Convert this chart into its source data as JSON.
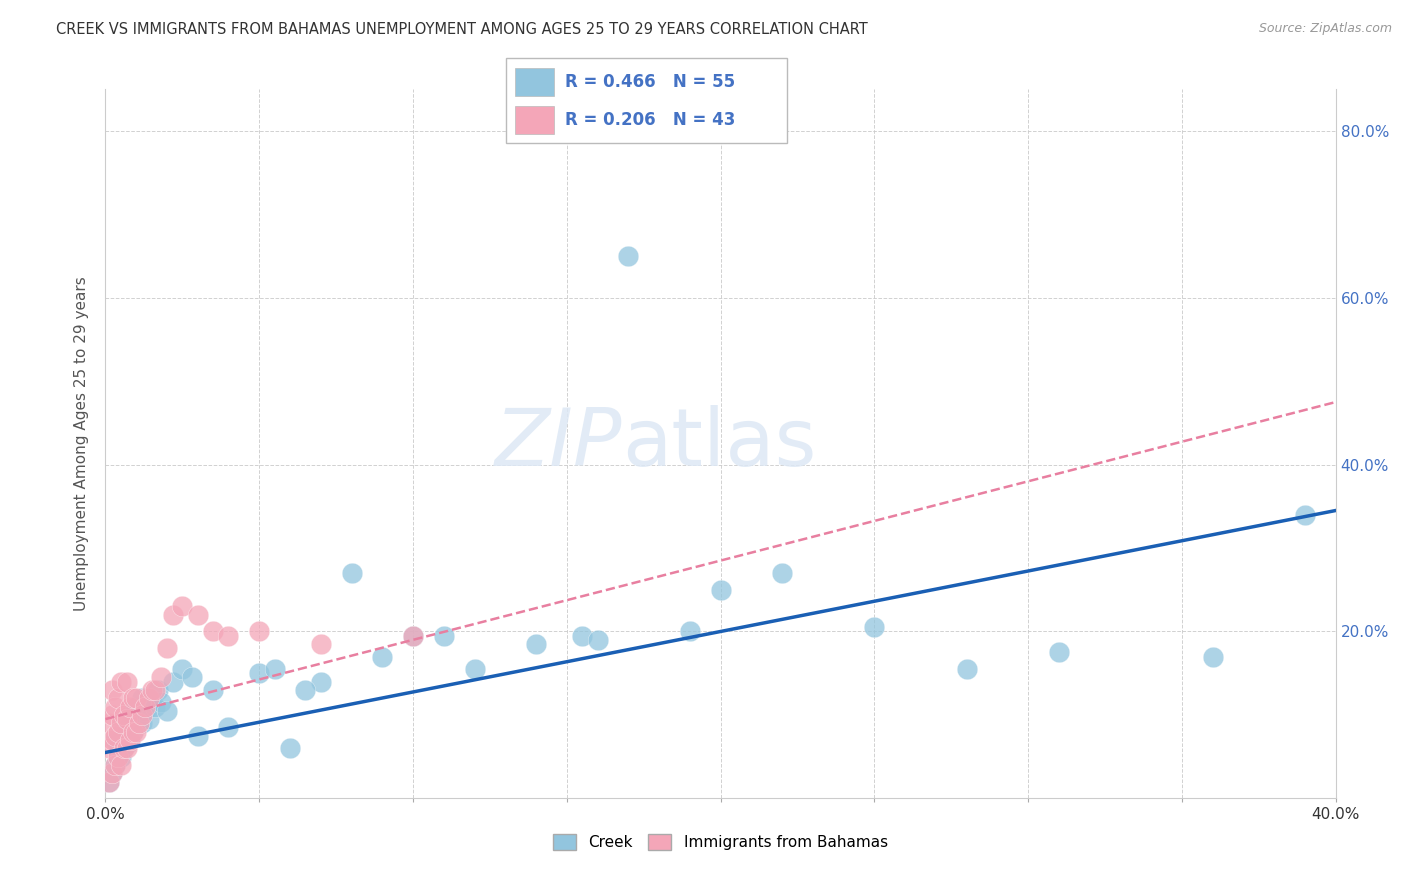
{
  "title": "CREEK VS IMMIGRANTS FROM BAHAMAS UNEMPLOYMENT AMONG AGES 25 TO 29 YEARS CORRELATION CHART",
  "source": "Source: ZipAtlas.com",
  "ylabel": "Unemployment Among Ages 25 to 29 years",
  "xlim": [
    0,
    0.4
  ],
  "ylim": [
    0,
    0.85
  ],
  "xtick_positions": [
    0.0,
    0.05,
    0.1,
    0.15,
    0.2,
    0.25,
    0.3,
    0.35,
    0.4
  ],
  "ytick_positions": [
    0.0,
    0.2,
    0.4,
    0.6,
    0.8
  ],
  "ytick_labels_right": [
    "",
    "20.0%",
    "40.0%",
    "60.0%",
    "80.0%"
  ],
  "creek_color": "#92c5de",
  "bahamas_color": "#f4a6b8",
  "creek_line_color": "#1a5fb4",
  "bahamas_line_color": "#e87fa0",
  "grid_color": "#cccccc",
  "watermark": "ZIPatlas",
  "creek_x": [
    0.001,
    0.002,
    0.003,
    0.003,
    0.004,
    0.005,
    0.005,
    0.006,
    0.006,
    0.007,
    0.007,
    0.008,
    0.008,
    0.009,
    0.009,
    0.01,
    0.01,
    0.011,
    0.012,
    0.012,
    0.013,
    0.014,
    0.015,
    0.016,
    0.017,
    0.018,
    0.02,
    0.022,
    0.025,
    0.028,
    0.03,
    0.035,
    0.04,
    0.05,
    0.055,
    0.06,
    0.07,
    0.08,
    0.09,
    0.1,
    0.11,
    0.12,
    0.14,
    0.155,
    0.17,
    0.19,
    0.2,
    0.22,
    0.25,
    0.28,
    0.16,
    0.31,
    0.36,
    0.39,
    0.065
  ],
  "creek_y": [
    0.02,
    0.03,
    0.04,
    0.07,
    0.05,
    0.05,
    0.085,
    0.06,
    0.09,
    0.065,
    0.09,
    0.07,
    0.1,
    0.08,
    0.105,
    0.09,
    0.11,
    0.1,
    0.09,
    0.12,
    0.105,
    0.095,
    0.115,
    0.11,
    0.13,
    0.115,
    0.105,
    0.14,
    0.155,
    0.145,
    0.075,
    0.13,
    0.085,
    0.15,
    0.155,
    0.06,
    0.14,
    0.27,
    0.17,
    0.195,
    0.195,
    0.155,
    0.185,
    0.195,
    0.65,
    0.2,
    0.25,
    0.27,
    0.205,
    0.155,
    0.19,
    0.175,
    0.17,
    0.34,
    0.13
  ],
  "bahamas_x": [
    0.001,
    0.001,
    0.001,
    0.002,
    0.002,
    0.002,
    0.002,
    0.003,
    0.003,
    0.003,
    0.004,
    0.004,
    0.004,
    0.005,
    0.005,
    0.005,
    0.006,
    0.006,
    0.007,
    0.007,
    0.007,
    0.008,
    0.008,
    0.009,
    0.009,
    0.01,
    0.01,
    0.011,
    0.012,
    0.013,
    0.014,
    0.015,
    0.016,
    0.018,
    0.02,
    0.022,
    0.025,
    0.03,
    0.035,
    0.04,
    0.05,
    0.07,
    0.1
  ],
  "bahamas_y": [
    0.02,
    0.06,
    0.09,
    0.03,
    0.07,
    0.1,
    0.13,
    0.04,
    0.075,
    0.11,
    0.05,
    0.08,
    0.12,
    0.04,
    0.09,
    0.14,
    0.06,
    0.1,
    0.06,
    0.095,
    0.14,
    0.07,
    0.11,
    0.08,
    0.12,
    0.08,
    0.12,
    0.09,
    0.1,
    0.11,
    0.12,
    0.13,
    0.13,
    0.145,
    0.18,
    0.22,
    0.23,
    0.22,
    0.2,
    0.195,
    0.2,
    0.185,
    0.195
  ],
  "creek_trendline_x0": 0.0,
  "creek_trendline_y0": 0.055,
  "creek_trendline_x1": 0.4,
  "creek_trendline_y1": 0.345,
  "bahamas_trendline_x0": 0.0,
  "bahamas_trendline_y0": 0.095,
  "bahamas_trendline_x1": 0.4,
  "bahamas_trendline_y1": 0.475
}
